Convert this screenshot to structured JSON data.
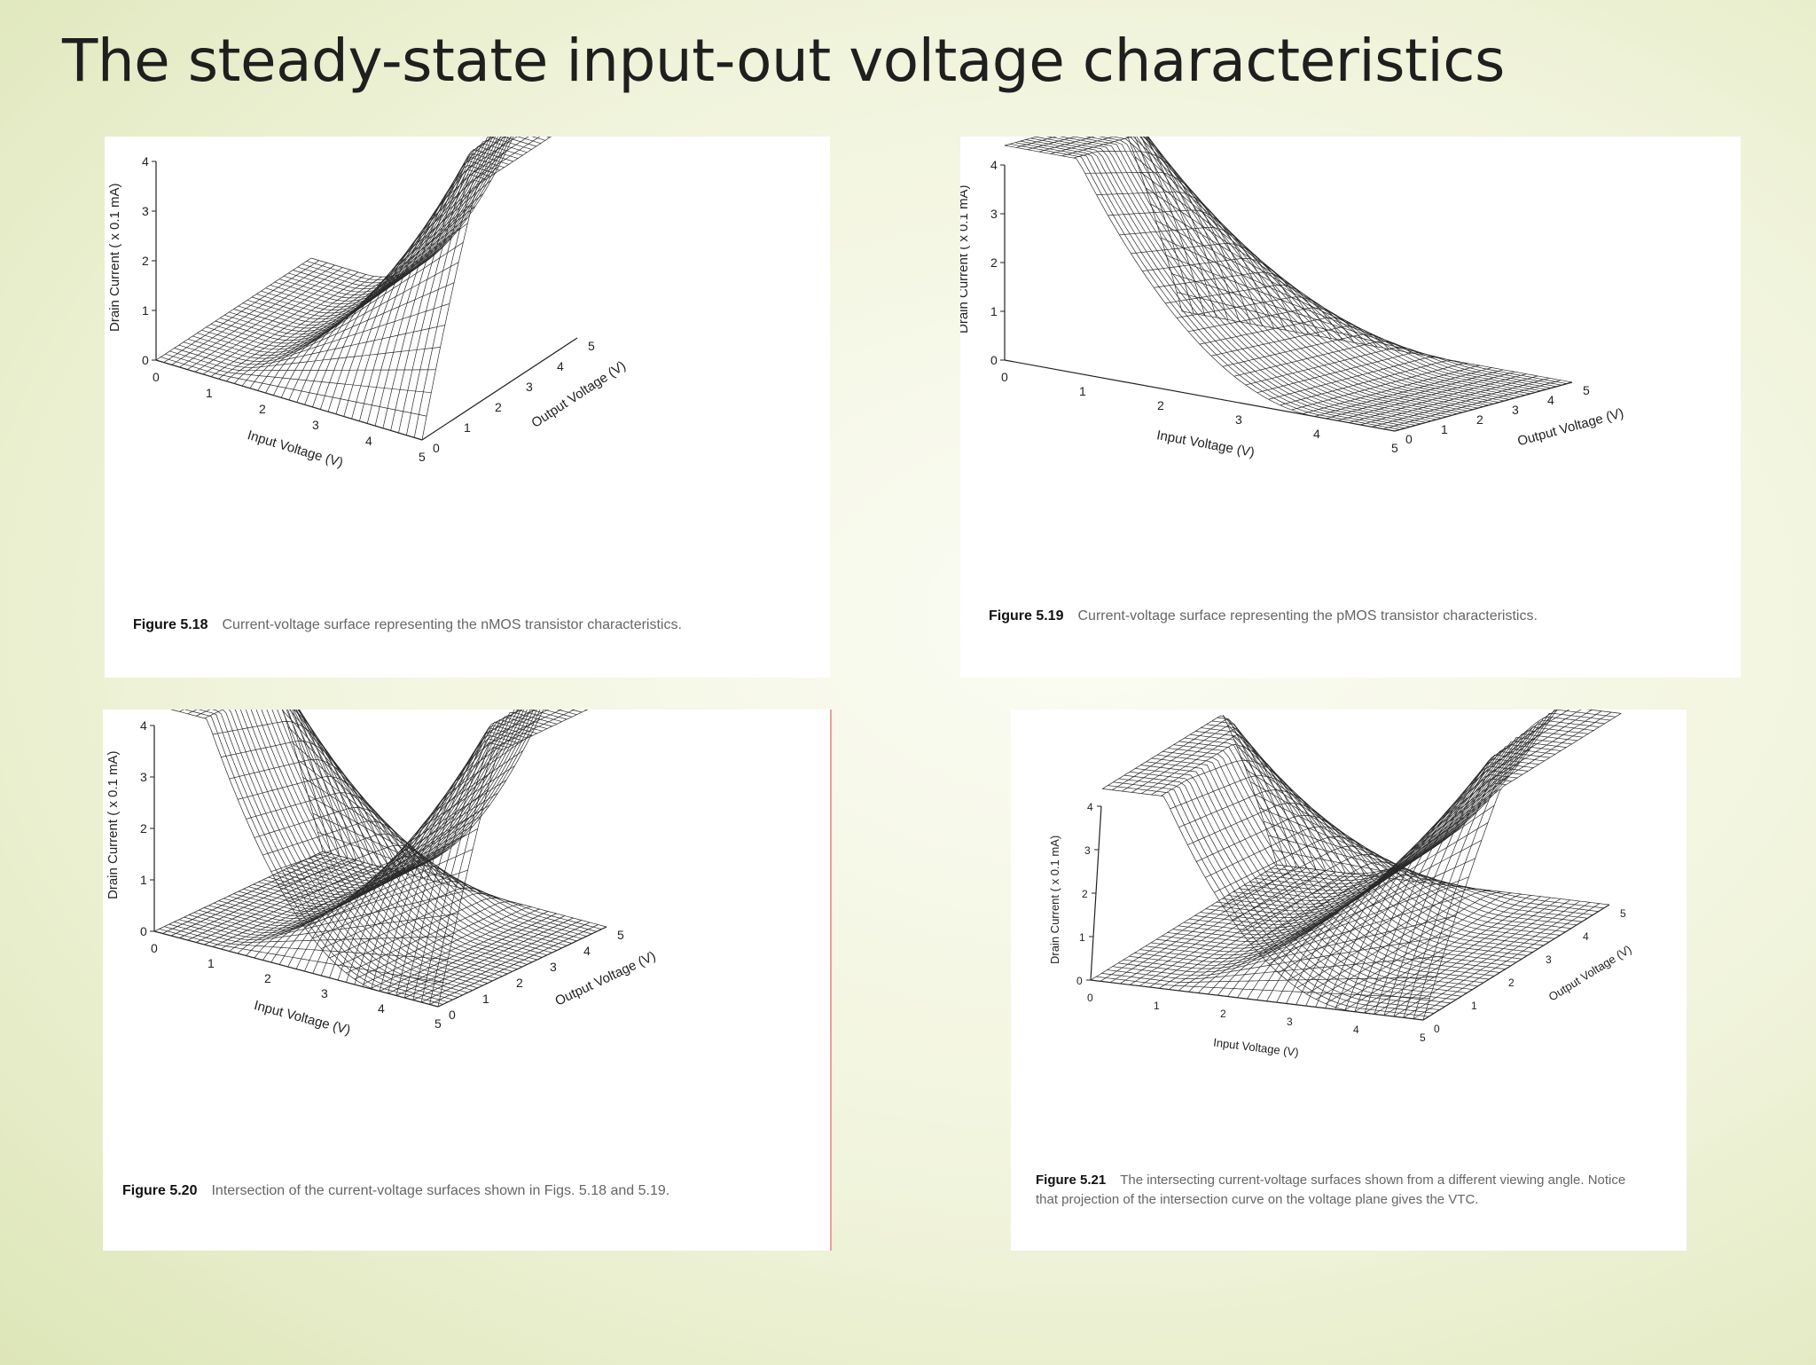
{
  "title": "The steady-state input-out voltage characteristics",
  "colors": {
    "title": "#1f1f1f",
    "background": "#eef2d6",
    "mesh": "#2a2a2a",
    "panel": "#ffffff"
  },
  "chart_data": [
    {
      "type": "surface3d",
      "figure": "Figure 5.18",
      "caption": "Current-voltage surface representing the nMOS transistor characteristics.",
      "xlabel": "Input Voltage (V)",
      "ylabel": "Output Voltage (V)",
      "zlabel": "Drain Current ( x 0.1 mA)",
      "xticks": [
        "0",
        "1",
        "2",
        "3",
        "4",
        "5"
      ],
      "yticks": [
        "0",
        "1",
        "2",
        "3",
        "4",
        "5"
      ],
      "zticks": [
        "0",
        "1",
        "2",
        "3",
        "4"
      ],
      "xlim": [
        0,
        5
      ],
      "ylim": [
        0,
        5
      ],
      "zlim": [
        0,
        4
      ],
      "series": [
        {
          "surface": "nmos"
        }
      ]
    },
    {
      "type": "surface3d",
      "figure": "Figure 5.19",
      "caption": "Current-voltage surface representing the pMOS transistor characteristics.",
      "xlabel": "Input Voltage (V)",
      "ylabel": "Output Voltage (V)",
      "zlabel": "Drain Current ( x 0.1 mA)",
      "xticks": [
        "0",
        "1",
        "2",
        "3",
        "4",
        "5"
      ],
      "yticks": [
        "0",
        "1",
        "2",
        "3",
        "4",
        "5"
      ],
      "zticks": [
        "0",
        "1",
        "2",
        "3",
        "4"
      ],
      "xlim": [
        0,
        5
      ],
      "ylim": [
        0,
        5
      ],
      "zlim": [
        0,
        4
      ],
      "series": [
        {
          "surface": "pmos"
        }
      ]
    },
    {
      "type": "surface3d",
      "figure": "Figure 5.20",
      "caption": "Intersection of the current-voltage surfaces shown in Figs. 5.18 and 5.19.",
      "xlabel": "Input Voltage (V)",
      "ylabel": "Output Voltage (V)",
      "zlabel": "Drain Current ( x 0.1 mA)",
      "xticks": [
        "0",
        "1",
        "2",
        "3",
        "4",
        "5"
      ],
      "yticks": [
        "0",
        "1",
        "2",
        "3",
        "4",
        "5"
      ],
      "zticks": [
        "0",
        "1",
        "2",
        "3",
        "4"
      ],
      "xlim": [
        0,
        5
      ],
      "ylim": [
        0,
        5
      ],
      "zlim": [
        0,
        4
      ],
      "series": [
        {
          "surface": "nmos"
        },
        {
          "surface": "pmos"
        }
      ]
    },
    {
      "type": "surface3d",
      "figure": "Figure 5.21",
      "caption": "The intersecting current-voltage surfaces shown from a different viewing angle. Notice that projection of the intersection curve on the voltage plane gives the VTC.",
      "xlabel": "Input Voltage (V)",
      "ylabel": "Output Voltage (V)",
      "zlabel": "Drain Current ( x 0.1 mA)",
      "xticks": [
        "0",
        "1",
        "2",
        "3",
        "4",
        "5"
      ],
      "yticks": [
        "0",
        "1",
        "2",
        "3",
        "4",
        "5"
      ],
      "zticks": [
        "0",
        "1",
        "2",
        "3",
        "4"
      ],
      "xlim": [
        0,
        5
      ],
      "ylim": [
        0,
        5
      ],
      "zlim": [
        0,
        4
      ],
      "series": [
        {
          "surface": "nmos"
        },
        {
          "surface": "pmos"
        }
      ]
    }
  ]
}
